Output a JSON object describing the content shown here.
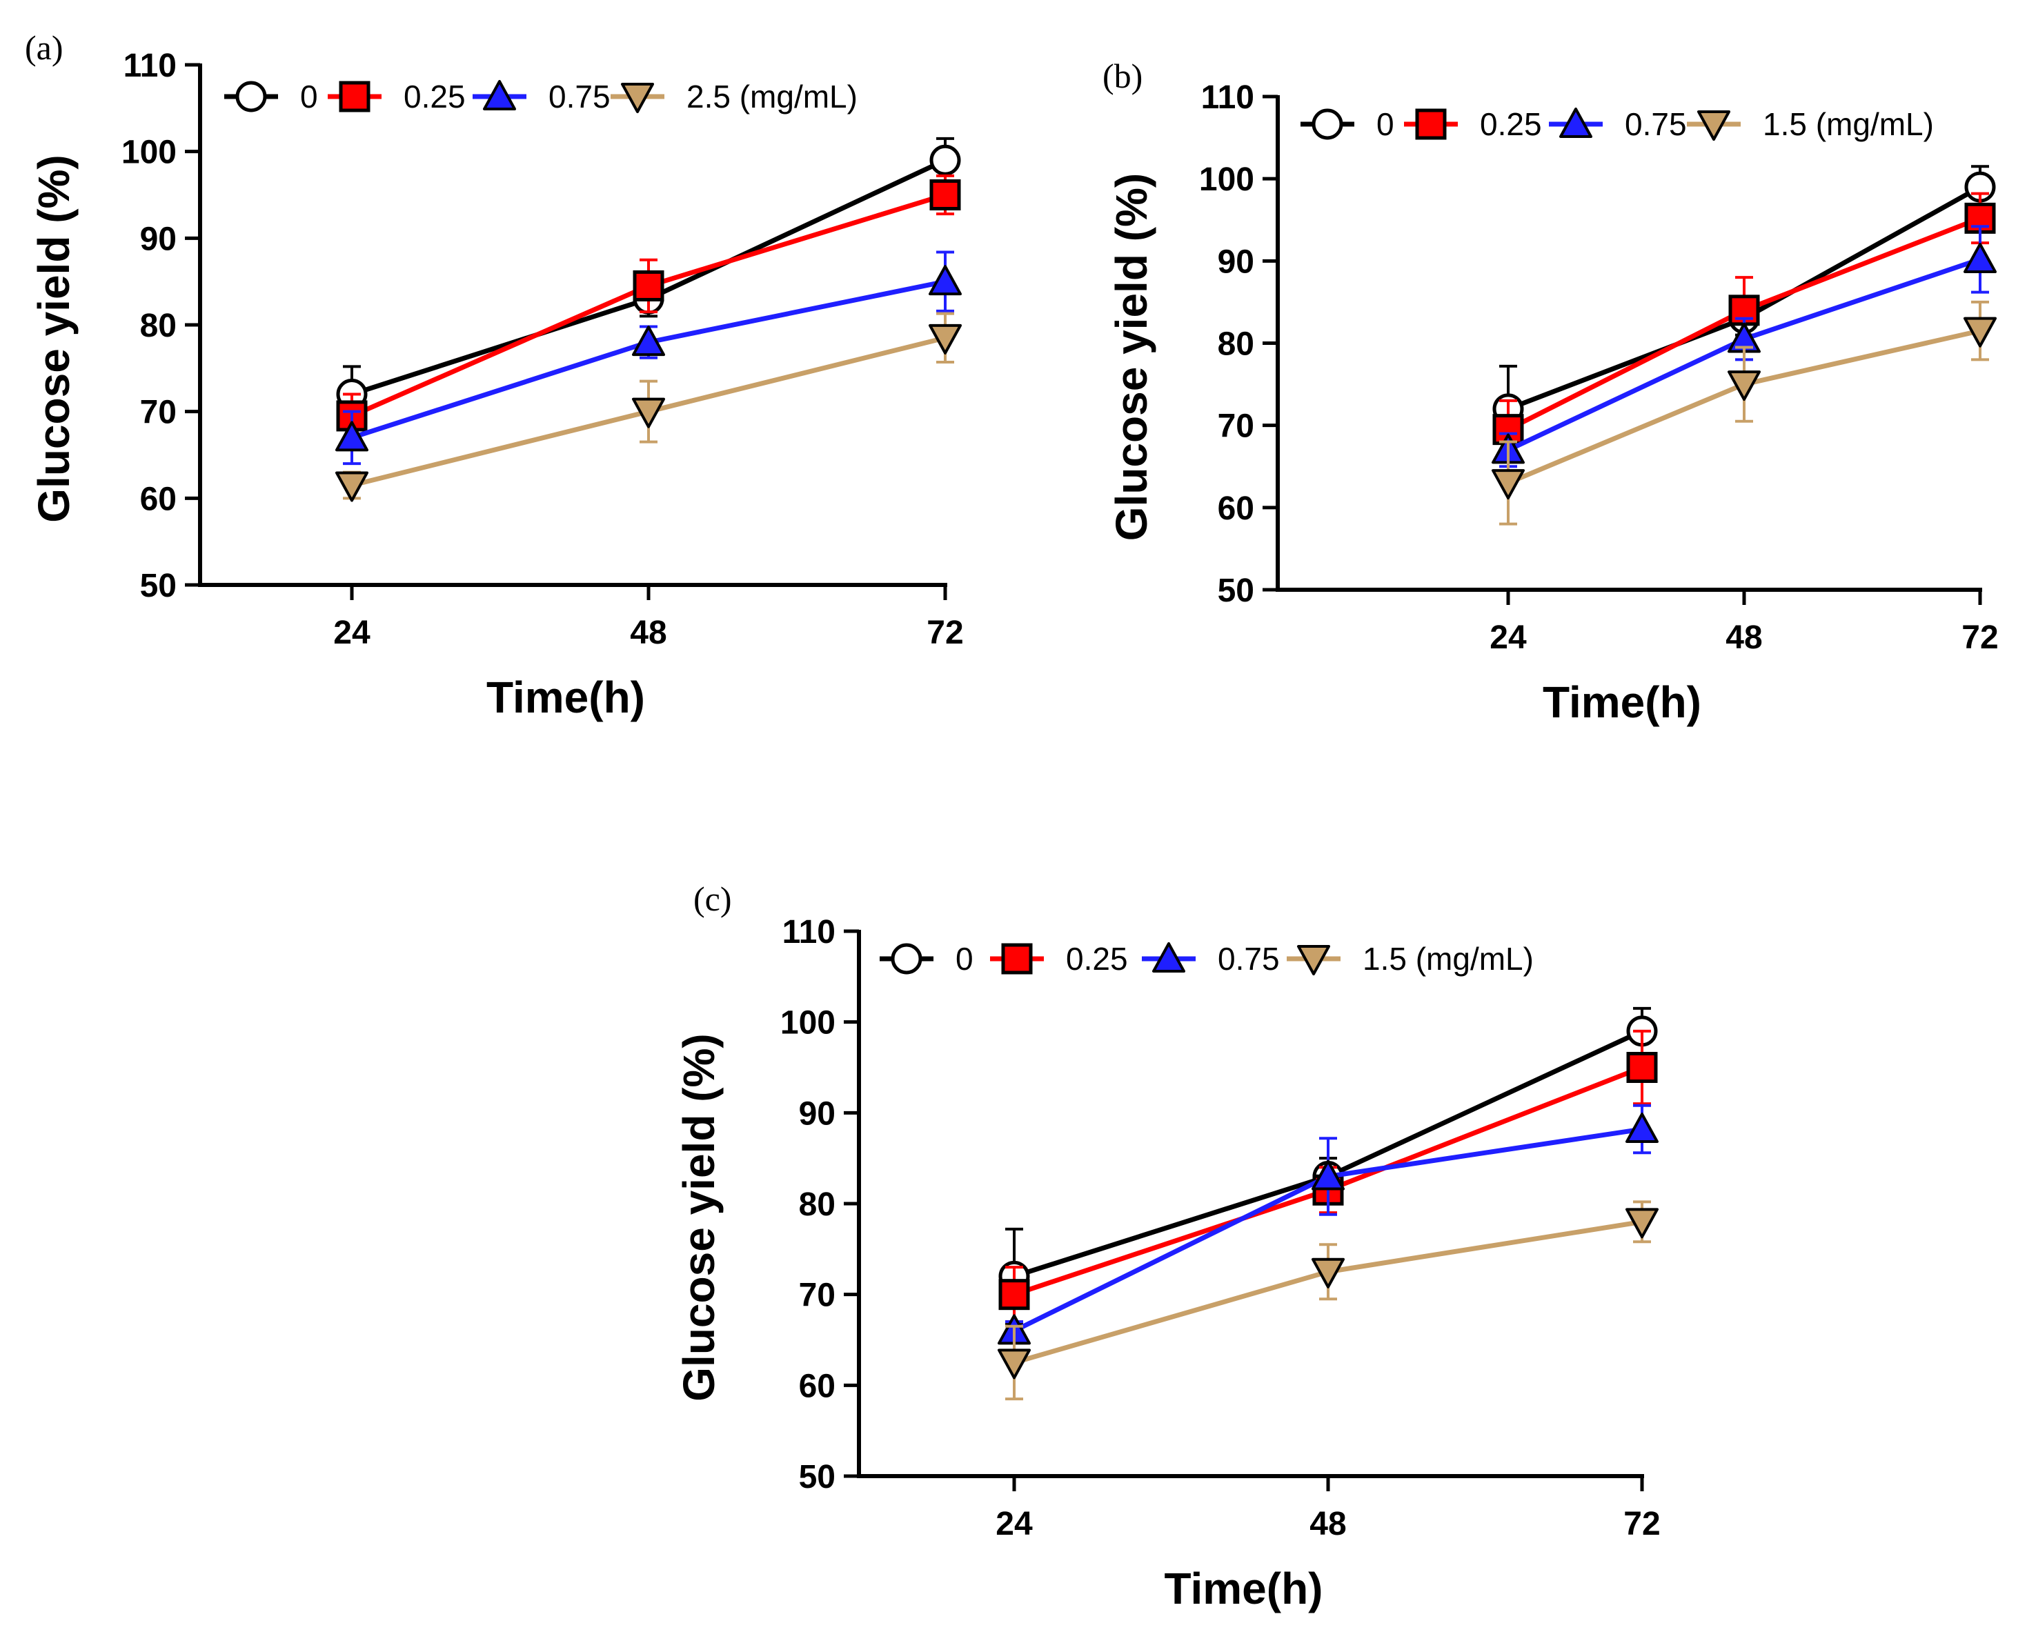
{
  "figure": {
    "panels": [
      "(a)",
      "(b)",
      "(c)"
    ]
  },
  "chart_data": [
    {
      "panel": "(a)",
      "type": "line",
      "xlabel": "Time(h)",
      "ylabel": "Glucose yield (%)",
      "x": [
        24,
        48,
        72
      ],
      "ylim": [
        50,
        110
      ],
      "yticks": [
        50,
        60,
        70,
        80,
        90,
        100,
        110
      ],
      "legend_placement": "top",
      "grid": false,
      "series": [
        {
          "name": "0",
          "color": "#000000",
          "marker": "circle",
          "values": [
            72,
            83,
            99
          ],
          "errors": [
            3.2,
            2.0,
            2.5
          ]
        },
        {
          "name": "0.25",
          "color": "#ff0000",
          "marker": "square",
          "values": [
            69.5,
            84.5,
            95
          ],
          "errors": [
            2.5,
            3.0,
            2.2
          ]
        },
        {
          "name": "0.75",
          "color": "#1f1fff",
          "marker": "triangle-up",
          "values": [
            67,
            78,
            85
          ],
          "errors": [
            3.0,
            1.8,
            3.4
          ]
        },
        {
          "name": "2.5 (mg/mL)",
          "color": "#c8a068",
          "marker": "triangle-down",
          "values": [
            61.5,
            70,
            78.5
          ],
          "errors": [
            1.5,
            3.5,
            2.8
          ]
        }
      ]
    },
    {
      "panel": "(b)",
      "type": "line",
      "xlabel": "Time(h)",
      "ylabel": "Glucose yield (%)",
      "x": [
        24,
        48,
        72
      ],
      "ylim": [
        50,
        110
      ],
      "yticks": [
        50,
        60,
        70,
        80,
        90,
        100,
        110
      ],
      "legend_placement": "top",
      "grid": false,
      "series": [
        {
          "name": "0",
          "color": "#000000",
          "marker": "circle",
          "values": [
            72,
            83,
            99
          ],
          "errors": [
            5.2,
            2.0,
            2.5
          ]
        },
        {
          "name": "0.25",
          "color": "#ff0000",
          "marker": "square",
          "values": [
            69.5,
            84,
            95.2
          ],
          "errors": [
            3.5,
            4.0,
            3.0
          ]
        },
        {
          "name": "0.75",
          "color": "#1f1fff",
          "marker": "triangle-up",
          "values": [
            67,
            80.5,
            90.2
          ],
          "errors": [
            2.0,
            2.5,
            4.0
          ]
        },
        {
          "name": "1.5 (mg/mL)",
          "color": "#c8a068",
          "marker": "triangle-down",
          "values": [
            63,
            75,
            81.5
          ],
          "errors": [
            5.0,
            4.5,
            3.5
          ]
        }
      ]
    },
    {
      "panel": "(c)",
      "type": "line",
      "xlabel": "Time(h)",
      "ylabel": "Glucose yield (%)",
      "x": [
        24,
        48,
        72
      ],
      "ylim": [
        50,
        110
      ],
      "yticks": [
        50,
        60,
        70,
        80,
        90,
        100,
        110
      ],
      "legend_placement": "top",
      "grid": false,
      "series": [
        {
          "name": "0",
          "color": "#000000",
          "marker": "circle",
          "values": [
            72,
            83,
            99
          ],
          "errors": [
            5.2,
            2.0,
            2.5
          ]
        },
        {
          "name": "0.25",
          "color": "#ff0000",
          "marker": "square",
          "values": [
            70,
            81.5,
            95
          ],
          "errors": [
            3.0,
            2.5,
            4.0
          ]
        },
        {
          "name": "0.75",
          "color": "#1f1fff",
          "marker": "triangle-up",
          "values": [
            66,
            83,
            88.2
          ],
          "errors": [
            1.0,
            4.2,
            2.6
          ]
        },
        {
          "name": "1.5 (mg/mL)",
          "color": "#c8a068",
          "marker": "triangle-down",
          "values": [
            62.5,
            72.5,
            78
          ],
          "errors": [
            4.0,
            3.0,
            2.2
          ]
        }
      ]
    }
  ]
}
